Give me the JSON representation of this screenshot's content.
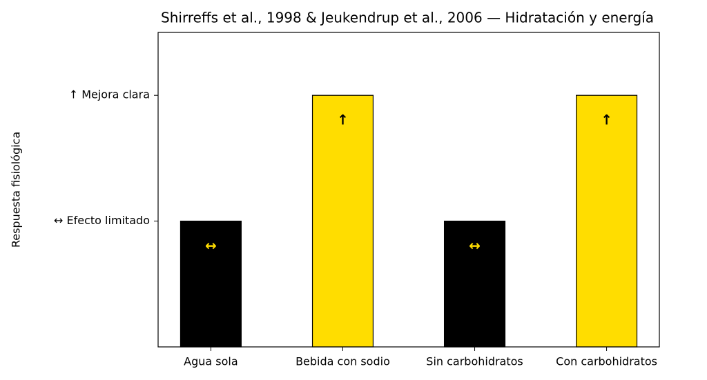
{
  "chart_data": {
    "type": "bar",
    "title": "Shirreffs et al., 1998 & Jeukendrup et al., 2006 — Hidratación y energía",
    "y_label": "Respuesta fisiológica",
    "categories": [
      "Agua sola",
      "Bebida con sodio",
      "Sin carbohidratos",
      "Con carbohidratos"
    ],
    "values": [
      1,
      2,
      1,
      2
    ],
    "value_labels": [
      "↔",
      "↑",
      "↔",
      "↑"
    ],
    "colors": [
      "#000000",
      "#ffdd00",
      "#000000",
      "#ffdd00"
    ],
    "value_label_colors": [
      "#ffdd00",
      "#000000",
      "#ffdd00",
      "#000000"
    ],
    "ylim": [
      0,
      2.5
    ],
    "yticks": [
      {
        "value": 1,
        "label": "↔ Efecto limitado"
      },
      {
        "value": 2,
        "label": "↑ Mejora clara"
      }
    ],
    "grid": false
  }
}
